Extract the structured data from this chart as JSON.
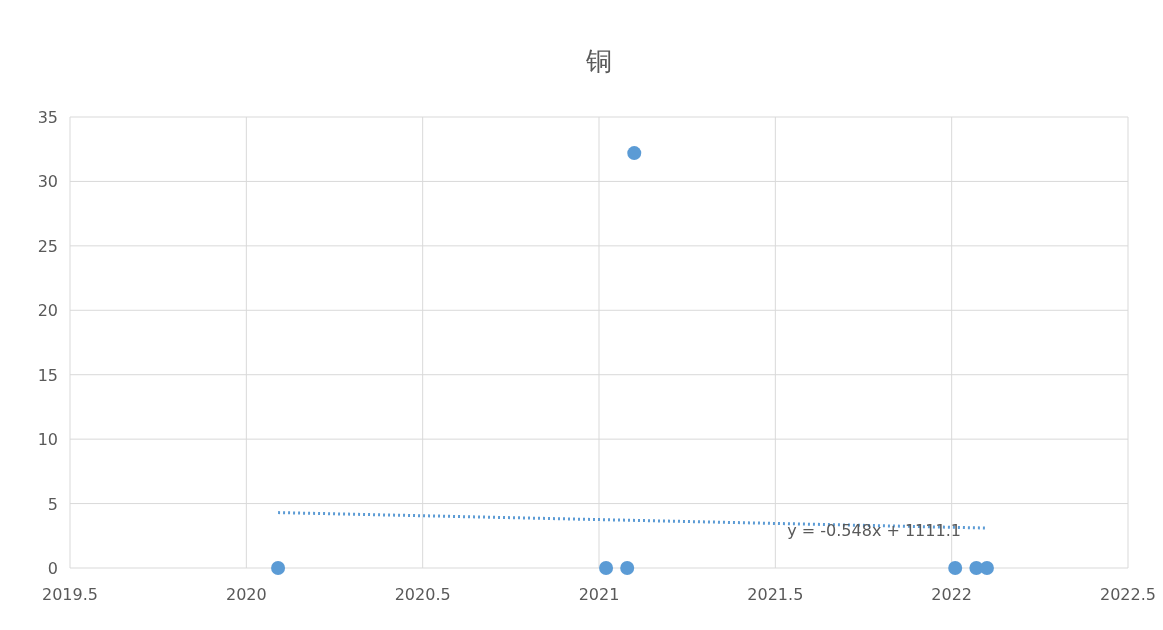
{
  "chart_data": {
    "type": "scatter",
    "title": "铜",
    "xlim": [
      2019.5,
      2022.5
    ],
    "xticks": [
      2019.5,
      2020,
      2020.5,
      2021,
      2021.5,
      2022,
      2022.5
    ],
    "ylim": [
      0,
      35
    ],
    "yticks": [
      0,
      5,
      10,
      15,
      20,
      25,
      30,
      35
    ],
    "grid": true,
    "series": [
      {
        "color": "#5b9bd5",
        "marker": "circle",
        "x": [
          2020.09,
          2021.02,
          2021.08,
          2021.1,
          2022.01,
          2022.07,
          2022.1
        ],
        "values": [
          0,
          0,
          0,
          32.2,
          0,
          0,
          0
        ]
      },
      {
        "type": "line",
        "color": "#5b9bd5",
        "line_style": "dotted",
        "marker": "none",
        "x": [
          2020.09,
          2022.1
        ],
        "values": [
          4.3,
          3.1
        ]
      }
    ],
    "annotations": [
      {
        "text": "y = -0.548x + 1111.1",
        "x": 2021.78,
        "y": 2.95
      }
    ]
  }
}
